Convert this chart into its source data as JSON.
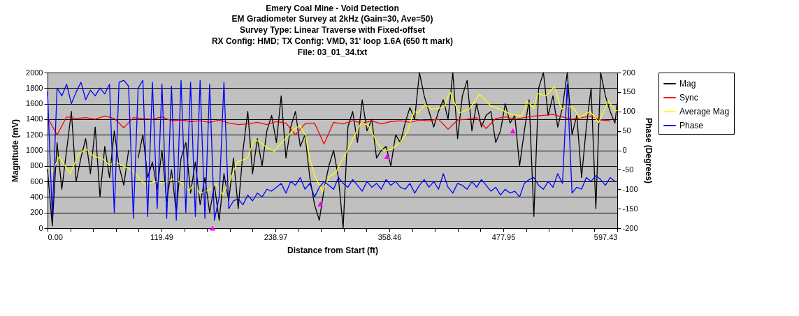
{
  "chart_data": {
    "type": "line",
    "title": "Emery Coal Mine - Void Detection",
    "subtitle": "EM Gradiometer Survey at 2kHz (Gain=30, Ave=50)\nSurvey Type: Linear Traverse with Fixed-offset\nRX Config: HMD; TX Config: VMD, 31' loop 1.6A (650 ft mark)\nFile: 03_01_34.txt",
    "xlabel": "Distance from Start (ft)",
    "ylabel": "Magnitude (mV)",
    "y2label": "Phase (Degrees)",
    "xlim": [
      0,
      597.43
    ],
    "xticks": [
      {
        "value": 0,
        "label": "0.00"
      },
      {
        "value": 23.9,
        "label": null
      },
      {
        "value": 47.79,
        "label": null
      },
      {
        "value": 71.69,
        "label": null
      },
      {
        "value": 95.59,
        "label": null
      },
      119.49,
      {
        "value": 143.38,
        "label": null
      },
      {
        "value": 167.28,
        "label": null
      },
      {
        "value": 191.18,
        "label": null
      },
      {
        "value": 215.07,
        "label": null
      },
      238.97,
      {
        "value": 262.87,
        "label": null
      },
      {
        "value": 286.77,
        "label": null
      },
      {
        "value": 310.66,
        "label": null
      },
      {
        "value": 334.56,
        "label": null
      },
      358.46,
      {
        "value": 382.36,
        "label": null
      },
      {
        "value": 406.25,
        "label": null
      },
      {
        "value": 430.15,
        "label": null
      },
      {
        "value": 454.05,
        "label": null
      },
      477.95,
      {
        "value": 501.84,
        "label": null
      },
      {
        "value": 525.74,
        "label": null
      },
      {
        "value": 549.64,
        "label": null
      },
      {
        "value": 573.53,
        "label": null
      },
      597.43
    ],
    "ylim": [
      0,
      2000
    ],
    "yticks": [
      0,
      200,
      400,
      600,
      800,
      1000,
      1200,
      1400,
      1600,
      1800,
      2000
    ],
    "y2lim": [
      -200,
      200
    ],
    "y2ticks": [
      -200,
      -150,
      -100,
      -50,
      0,
      50,
      100,
      150,
      200
    ],
    "grid": "y",
    "legend": "right",
    "series": [
      {
        "name": "Mag",
        "color": "#000000",
        "x": [
          0,
          5,
          10,
          15,
          20,
          25,
          30,
          35,
          40,
          45,
          50,
          55,
          60,
          65,
          70,
          75,
          80,
          85,
          90,
          95,
          100,
          105,
          110,
          115,
          120,
          125,
          130,
          135,
          140,
          145,
          150,
          155,
          160,
          165,
          170,
          175,
          180,
          185,
          190,
          195,
          200,
          205,
          210,
          215,
          220,
          225,
          230,
          235,
          240,
          245,
          250,
          255,
          260,
          265,
          270,
          275,
          280,
          285,
          290,
          295,
          300,
          305,
          310,
          315,
          320,
          325,
          330,
          335,
          340,
          345,
          350,
          355,
          360,
          365,
          370,
          375,
          380,
          385,
          390,
          395,
          400,
          405,
          410,
          415,
          420,
          425,
          430,
          435,
          440,
          445,
          450,
          455,
          460,
          465,
          470,
          475,
          480,
          485,
          490,
          495,
          500,
          505,
          510,
          515,
          520,
          525,
          530,
          535,
          540,
          545,
          550,
          555,
          560,
          565,
          570,
          575,
          580,
          585,
          590,
          595,
          597.43
        ],
        "values": [
          750,
          30,
          1100,
          500,
          1000,
          1500,
          600,
          900,
          1150,
          700,
          1300,
          400,
          1050,
          650,
          1250,
          800,
          550,
          1000,
          null,
          900,
          1200,
          650,
          850,
          500,
          1000,
          350,
          750,
          200,
          900,
          1100,
          450,
          850,
          300,
          650,
          200,
          550,
          100,
          700,
          350,
          900,
          250,
          1000,
          1500,
          700,
          1150,
          800,
          1250,
          1450,
          1100,
          1700,
          900,
          1300,
          1500,
          1050,
          1200,
          650,
          300,
          100,
          500,
          800,
          1000,
          650,
          0,
          1300,
          1500,
          1100,
          1650,
          1250,
          1400,
          900,
          1000,
          1050,
          800,
          1200,
          1100,
          1350,
          1550,
          1400,
          2000,
          1700,
          1500,
          1300,
          1500,
          1650,
          1400,
          2000,
          1150,
          1700,
          1900,
          1250,
          1600,
          1300,
          1450,
          1500,
          1100,
          1250,
          1600,
          1350,
          1450,
          800,
          1250,
          1650,
          150,
          1800,
          2000,
          1450,
          1700,
          1300,
          1550,
          2000,
          1200,
          1450,
          650,
          1300,
          1800,
          250,
          2000,
          1700,
          1500,
          1350,
          1600
        ]
      },
      {
        "name": "Sync",
        "color": "#ff0000",
        "x": [
          0,
          10,
          20,
          30,
          40,
          50,
          60,
          70,
          80,
          90,
          100,
          110,
          120,
          130,
          140,
          150,
          160,
          170,
          180,
          190,
          200,
          210,
          220,
          230,
          240,
          250,
          260,
          270,
          280,
          290,
          300,
          310,
          320,
          330,
          340,
          350,
          360,
          370,
          380,
          390,
          400,
          410,
          420,
          430,
          440,
          450,
          460,
          470,
          480,
          490,
          500,
          510,
          520,
          530,
          540,
          550,
          560,
          570,
          580,
          590
        ],
        "values": [
          1420,
          1200,
          1430,
          1410,
          1420,
          1400,
          1440,
          1410,
          1290,
          1420,
          1410,
          1400,
          1430,
          1380,
          1390,
          1370,
          1380,
          1360,
          1390,
          1350,
          1330,
          1340,
          1360,
          1330,
          1370,
          1350,
          1200,
          1340,
          1350,
          1080,
          1360,
          1340,
          1380,
          1350,
          1380,
          1340,
          1370,
          1380,
          1360,
          1390,
          1380,
          1400,
          1270,
          1390,
          1400,
          1420,
          1280,
          1410,
          1430,
          1400,
          1420,
          1440,
          1450,
          1460,
          1430,
          1400,
          1420,
          1440,
          1390,
          1380
        ]
      },
      {
        "name": "Average Mag",
        "color": "#ffff00",
        "x": [
          0,
          5,
          12.2,
          23.6,
          33.6,
          41.5,
          48.7,
          57.2,
          64.4,
          71.6,
          80.9,
          88,
          102.3,
          112.3,
          121.6,
          130.9,
          141,
          148.1,
          153.8,
          159.6,
          169.6,
          176.7,
          183.9,
          191,
          198.9,
          209.6,
          216.8,
          224,
          230.4,
          238.3,
          244.7,
          249,
          257.6,
          264.7,
          270.5,
          275.5,
          280.5,
          288.3,
          295.5,
          302.7,
          307.7,
          314.8,
          322,
          329.1,
          336.3,
          345.6,
          352.7,
          359.9,
          369.9,
          377.1,
          384.2,
          388.5,
          395.7,
          402.8,
          415.6,
          422.1,
          431.4,
          442.2,
          452.9,
          465.1,
          474.4,
          486.5,
          497.3,
          503,
          510.2,
          513.7,
          522.3,
          531.6,
          538.8,
          545.9,
          552.4,
          558.1,
          568.8,
          578.1,
          588.1,
          595.3,
          597.43
        ],
        "values": [
          780,
          720,
          920,
          700,
          970,
          1010,
          920,
          900,
          810,
          850,
          790,
          750,
          560,
          600,
          580,
          630,
          580,
          480,
          560,
          450,
          490,
          560,
          430,
          600,
          850,
          900,
          1140,
          1100,
          1030,
          990,
          1090,
          1140,
          1260,
          1320,
          1190,
          870,
          660,
          470,
          660,
          720,
          850,
          1010,
          1190,
          1360,
          1320,
          1100,
          990,
          1010,
          1100,
          1230,
          1500,
          1480,
          1590,
          1530,
          1550,
          1750,
          1480,
          1530,
          1720,
          1570,
          1530,
          1460,
          1440,
          1630,
          1540,
          1730,
          1700,
          1820,
          1530,
          1570,
          1530,
          1420,
          1500,
          1360,
          1640,
          1510,
          1510
        ]
      },
      {
        "name": "Phase",
        "color": "#0000ff",
        "axis": "y2",
        "x": [
          0,
          5,
          10,
          15,
          20,
          25,
          30,
          35,
          40,
          45,
          50,
          55,
          60,
          65,
          70,
          75,
          80,
          85,
          90,
          95,
          100,
          105,
          110,
          115,
          120,
          125,
          130,
          135,
          140,
          145,
          150,
          155,
          160,
          165,
          170,
          175,
          180,
          185,
          190,
          195,
          200,
          205,
          210,
          215,
          220,
          225,
          230,
          235,
          240,
          245,
          250,
          255,
          260,
          265,
          270,
          275,
          280,
          285,
          290,
          295,
          300,
          305,
          310,
          315,
          320,
          325,
          330,
          335,
          340,
          345,
          350,
          355,
          360,
          365,
          370,
          375,
          380,
          385,
          390,
          395,
          400,
          405,
          410,
          415,
          420,
          425,
          430,
          435,
          440,
          445,
          450,
          455,
          460,
          465,
          470,
          475,
          480,
          485,
          490,
          495,
          500,
          505,
          510,
          515,
          520,
          525,
          530,
          535,
          540,
          545,
          550,
          555,
          560,
          565,
          570,
          575,
          580,
          585,
          590,
          595
        ],
        "values": [
          150,
          -170,
          160,
          140,
          170,
          120,
          150,
          175,
          130,
          155,
          140,
          160,
          145,
          170,
          -160,
          175,
          180,
          165,
          -175,
          160,
          180,
          -170,
          175,
          -150,
          170,
          -175,
          165,
          -180,
          180,
          -160,
          175,
          -170,
          180,
          -175,
          170,
          -180,
          -120,
          175,
          -150,
          -130,
          -125,
          -140,
          -115,
          -130,
          -110,
          -120,
          -100,
          -105,
          -95,
          -85,
          -110,
          -80,
          -90,
          -70,
          -100,
          -85,
          -120,
          -95,
          -80,
          -90,
          -100,
          -70,
          -85,
          -95,
          -75,
          -90,
          -105,
          -80,
          -95,
          -85,
          -100,
          -75,
          -90,
          -80,
          -95,
          -100,
          -85,
          -110,
          -90,
          -75,
          -95,
          -80,
          -100,
          -60,
          -95,
          -110,
          -85,
          -90,
          -100,
          -80,
          -95,
          -75,
          -90,
          -105,
          -95,
          -115,
          -100,
          -110,
          -105,
          -120,
          -85,
          -75,
          -70,
          -90,
          -100,
          -80,
          -95,
          -60,
          -85,
          170,
          -110,
          -95,
          -100,
          -70,
          -80,
          -65,
          -75,
          -90,
          -70,
          -80
        ]
      },
      {
        "type": "scatter",
        "marker": "triangle",
        "color": "#ff00ff",
        "x": [
          173,
          286,
          356,
          488
        ],
        "values": [
          0,
          310,
          920,
          1250
        ]
      }
    ]
  }
}
